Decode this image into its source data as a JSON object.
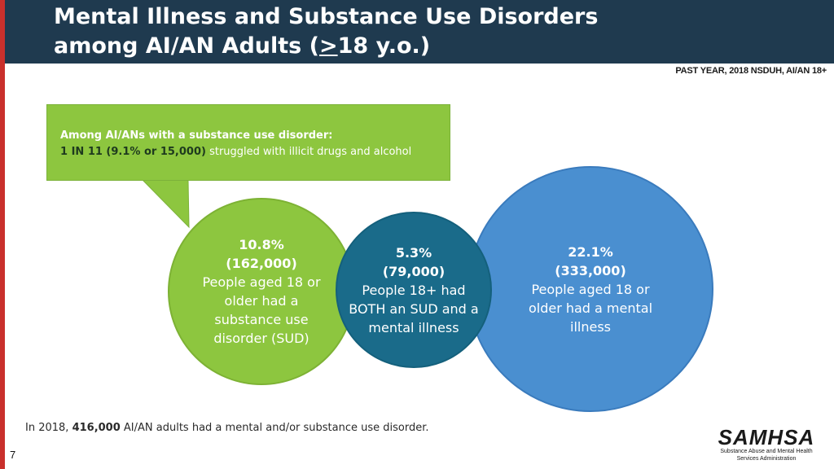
{
  "header": {
    "title_line1": "Mental Illness and Substance Use Disorders",
    "title_line2_prefix": "among AI/AN Adults (",
    "title_line2_underlined": ">",
    "title_line2_suffix": "18 y.o.)"
  },
  "source_label": "PAST YEAR, 2018 NSDUH, AI/AN 18+",
  "callout": {
    "heading": "Among AI/ANs with a substance use disorder:",
    "highlight": "1 IN 11 (9.1% or 15,000)",
    "rest": " struggled with illicit drugs and alcohol"
  },
  "circles": {
    "sud": {
      "percent": "10.8%",
      "count": "(162,000)",
      "description": "People aged 18 or older had a substance use disorder (SUD)"
    },
    "both": {
      "percent": "5.3%",
      "count": "(79,000)",
      "description": "People 18+ had BOTH an SUD and a mental illness"
    },
    "mental": {
      "percent": "22.1%",
      "count": "(333,000)",
      "description": "People aged 18 or older had a mental illness"
    }
  },
  "footer": {
    "prefix": "In 2018, ",
    "bold": "416,000",
    "suffix": " AI/AN adults had a mental and/or substance use disorder."
  },
  "slide_number": "7",
  "logo": {
    "wordmark": "SAMHSA",
    "subtitle_line1": "Substance Abuse and Mental Health",
    "subtitle_line2": "Services Administration"
  },
  "colors": {
    "header_bg": "#1f3a4f",
    "accent_red": "#c9302c",
    "green": "#8dc63f",
    "teal": "#1a6b8a",
    "blue": "#4a8fd0"
  }
}
